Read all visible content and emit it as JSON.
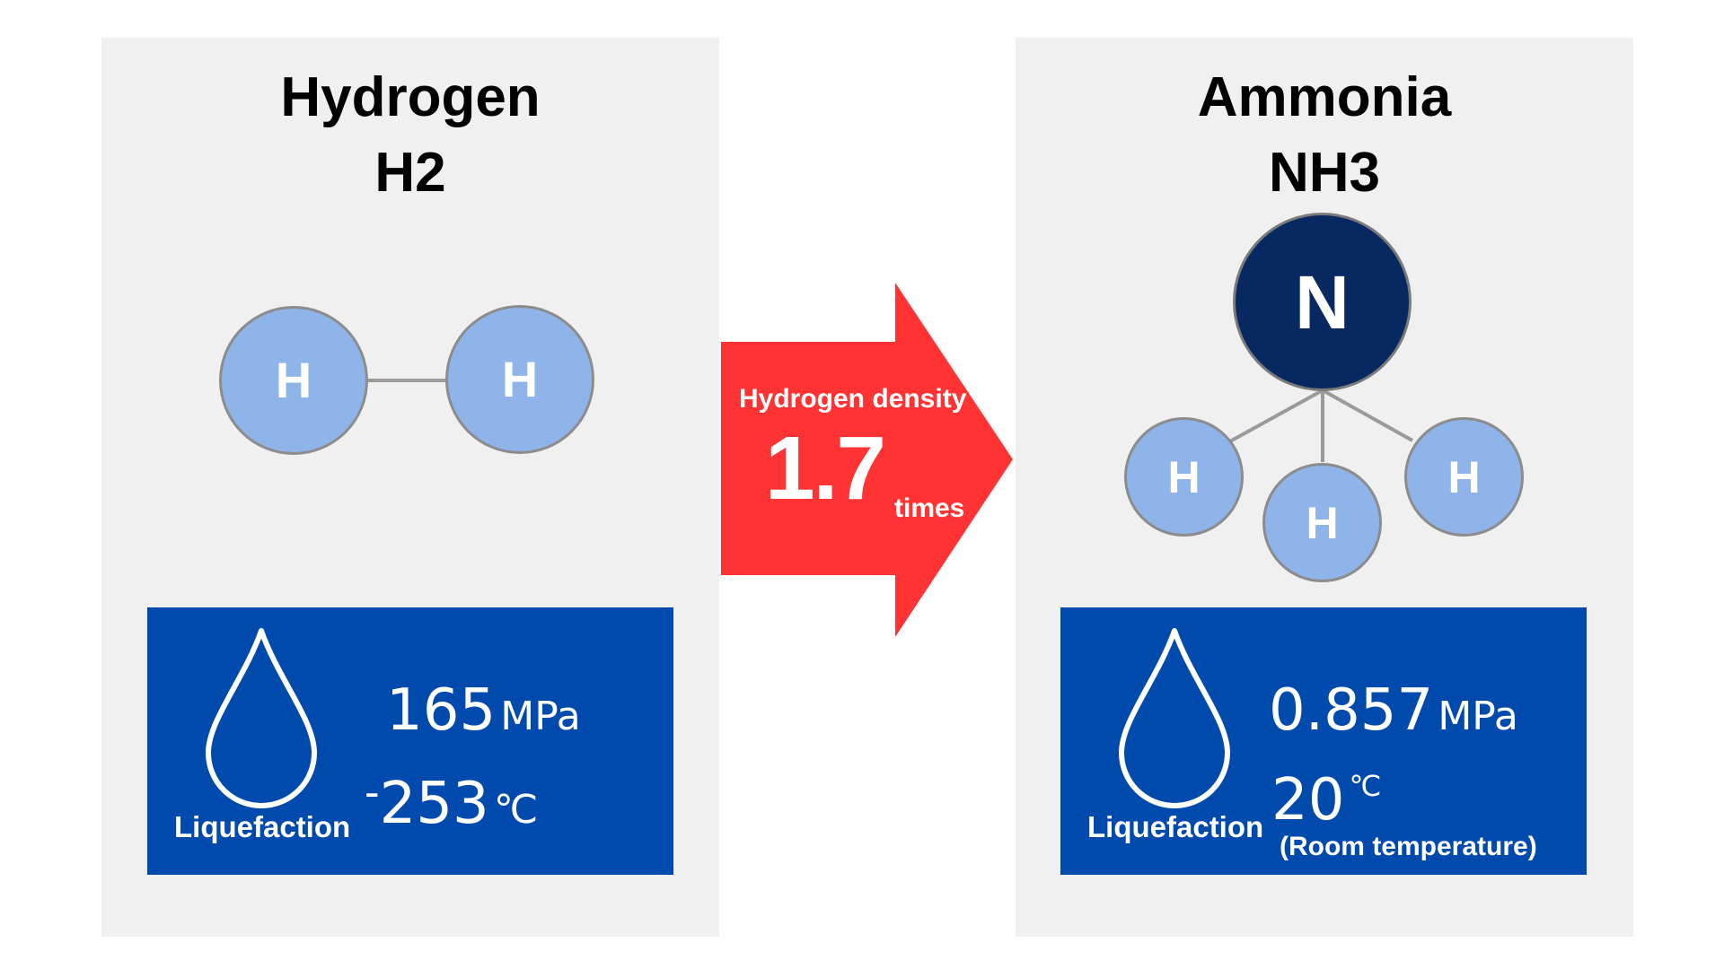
{
  "left": {
    "title": "Hydrogen",
    "formula": "H2",
    "atoms": [
      "H",
      "H"
    ],
    "info": {
      "label": "Liquefaction",
      "pressure_value": "165",
      "pressure_unit": "MPa",
      "temp_sign": "-",
      "temp_value": "253",
      "temp_unit": "℃"
    }
  },
  "arrow": {
    "label": "Hydrogen density",
    "value": "1.7",
    "unit": "times"
  },
  "right": {
    "title": "Ammonia",
    "formula": "NH3",
    "center_atom": "N",
    "atoms": [
      "H",
      "H",
      "H"
    ],
    "info": {
      "label": "Liquefaction",
      "pressure_value": "0.857",
      "pressure_unit": "MPa",
      "temp_value": "20",
      "temp_unit": "℃",
      "temp_note": "(Room temperature)"
    }
  },
  "colors": {
    "panel": "#f0f0f0",
    "hydrogen_atom": "#8fb4ea",
    "nitrogen_atom": "#082862",
    "info_box": "#004aad",
    "arrow": "#ff3333"
  },
  "icons": [
    "water-drop-icon",
    "right-arrow-icon"
  ]
}
